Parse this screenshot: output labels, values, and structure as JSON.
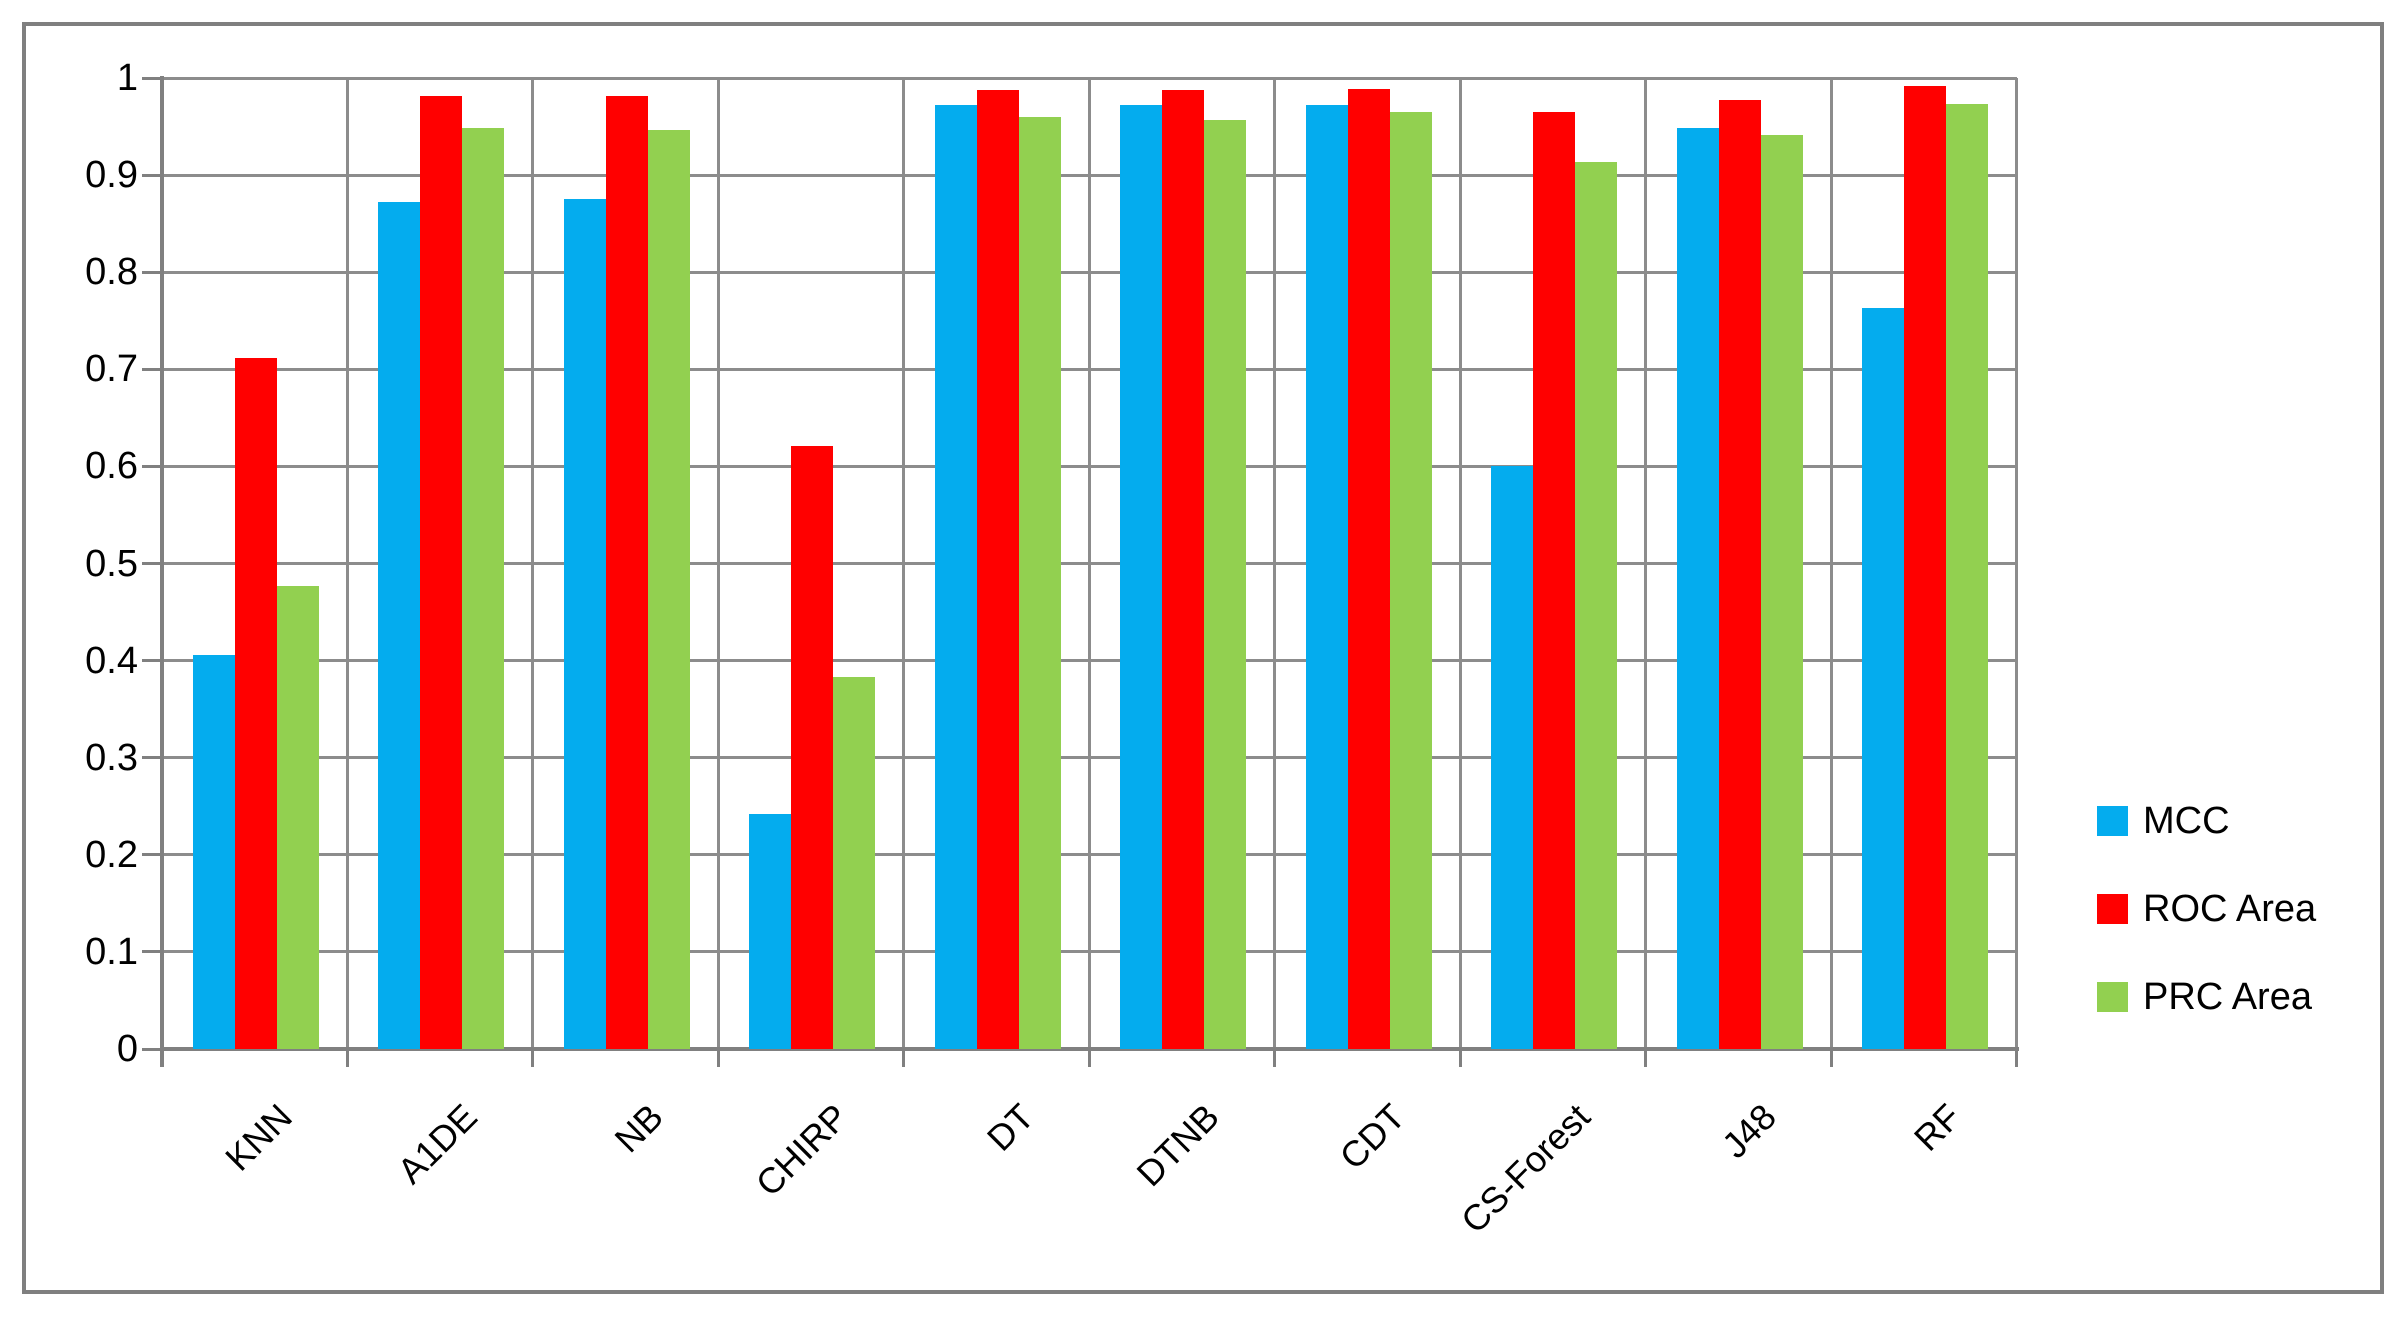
{
  "chart_data": {
    "type": "bar",
    "title": "",
    "xlabel": "",
    "ylabel": "",
    "categories": [
      "KNN",
      "A1DE",
      "NB",
      "CHIRP",
      "DT",
      "DTNB",
      "CDT",
      "CS-Forest",
      "J48",
      "RF"
    ],
    "series": [
      {
        "name": "MCC",
        "color": "#04ACEE",
        "values": [
          0.406,
          0.872,
          0.875,
          0.242,
          0.972,
          0.972,
          0.972,
          0.6,
          0.949,
          0.763
        ]
      },
      {
        "name": "ROC Area",
        "color": "#FF0000",
        "values": [
          0.712,
          0.981,
          0.981,
          0.621,
          0.988,
          0.988,
          0.989,
          0.965,
          0.977,
          0.992
        ]
      },
      {
        "name": "PRC Area",
        "color": "#92D050",
        "values": [
          0.477,
          0.949,
          0.946,
          0.383,
          0.96,
          0.957,
          0.965,
          0.914,
          0.941,
          0.973
        ]
      }
    ],
    "ylim": [
      0,
      1
    ],
    "yticks": [
      "0",
      "0.1",
      "0.2",
      "0.3",
      "0.4",
      "0.5",
      "0.6",
      "0.7",
      "0.8",
      "0.9",
      "1"
    ],
    "grid": true,
    "legend_position": "right",
    "colors": {
      "gridline": "#8c8c8c",
      "axis": "#808080",
      "frame": "#7f7f7f",
      "text": "#000000"
    }
  }
}
